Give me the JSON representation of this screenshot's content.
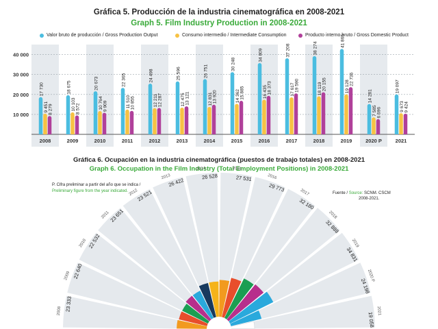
{
  "chart1": {
    "title": "Gráfica 5. Producción de la industria cinematográfica en 2008-2021",
    "subtitle": "Graph 5. Film Industry Production in 2008-2021",
    "legend": [
      {
        "label": "Valor bruto de producción / Gross Production Output",
        "color": "#4bbde0"
      },
      {
        "label": "Consumo intermedio / Intermediate Consumption",
        "color": "#f7c244"
      },
      {
        "label": "Producto interno bruto / Gross Domestic Product",
        "color": "#b0409a"
      }
    ]
  },
  "chart2": {
    "title": "Gráfica 6. Ocupación en la industria cinematográfica (puestos de trabajo totales) en 2008-2021",
    "subtitle": "Graph 6. Occupation in the Film Industry (Total Employment Positions) in 2008-2021",
    "note_es": "P. Cifra preliminar a partir del año que se indica /",
    "note_en": "Preliminary figure from the year indicated.",
    "source_es": "Fuente / ",
    "source_en": "Source:",
    "source_text": " SCNM. CSCM",
    "source_years": "2008-2021."
  },
  "chart_data": [
    {
      "type": "bar",
      "title": "Gráfica 5. Producción de la industria cinematográfica en 2008-2021",
      "categories": [
        "2008",
        "2009",
        "2010",
        "2011",
        "2012",
        "2013",
        "2014",
        "2015",
        "2016",
        "2017",
        "2018",
        "2019",
        "2020 P",
        "2021"
      ],
      "series": [
        {
          "name": "Valor bruto de producción / Gross Production Output",
          "color": "#4bbde0",
          "values": [
            17730,
            18675,
            20673,
            22365,
            24498,
            25596,
            26751,
            30248,
            34809,
            37208,
            38274,
            41865,
            14281,
            19097
          ]
        },
        {
          "name": "Consumo intermedio / Intermediate Consumption",
          "color": "#f7c244",
          "values": [
            9451,
            10103,
            10764,
            11510,
            12211,
            12475,
            12831,
            14362,
            16435,
            17617,
            18119,
            19128,
            7585,
            9673
          ]
        },
        {
          "name": "Producto interno bruto / Gross Domestic Product",
          "color": "#b0409a",
          "values": [
            8279,
            8572,
            9909,
            10855,
            12287,
            13121,
            13920,
            15885,
            18373,
            19590,
            20155,
            22736,
            6696,
            9424
          ]
        }
      ],
      "yticks": [
        10000,
        20000,
        30000,
        40000
      ],
      "ytick_labels": [
        "10 000",
        "20 000",
        "30 000",
        "40 000"
      ],
      "ylim": [
        0,
        45000
      ],
      "grid": true,
      "legend_position": "top"
    },
    {
      "type": "bar",
      "subtype": "radial",
      "title": "Gráfica 6. Ocupación en la industria cinematográfica (puestos de trabajo totales) en 2008-2021",
      "categories": [
        "2008",
        "2009",
        "2010",
        "2011",
        "2012",
        "2013",
        "2014",
        "2015",
        "2016",
        "2017",
        "2018",
        "2019",
        "2020 P",
        "2021"
      ],
      "values": [
        23333,
        22640,
        22532,
        23651,
        23521,
        26422,
        26528,
        27531,
        29773,
        32180,
        32888,
        34831,
        24198,
        19058
      ],
      "value_labels": [
        "23 333",
        "22 640",
        "22 532",
        "23 651",
        "23 521",
        "26 422",
        "26 528",
        "27 531",
        "29 773",
        "32 180",
        "32 888",
        "34 831",
        "24 198",
        "19 058"
      ],
      "colors": [
        "#f29a1f",
        "#e84e2c",
        "#1b9e52",
        "#b72f8c",
        "#2aa9dc",
        "#183a5e",
        "#f5b31a",
        "#f29a1f",
        "#e84e2c",
        "#1b9e52",
        "#b72f8c",
        "#2aa9dc",
        "#2aa9dc",
        "#ffffff"
      ]
    }
  ]
}
